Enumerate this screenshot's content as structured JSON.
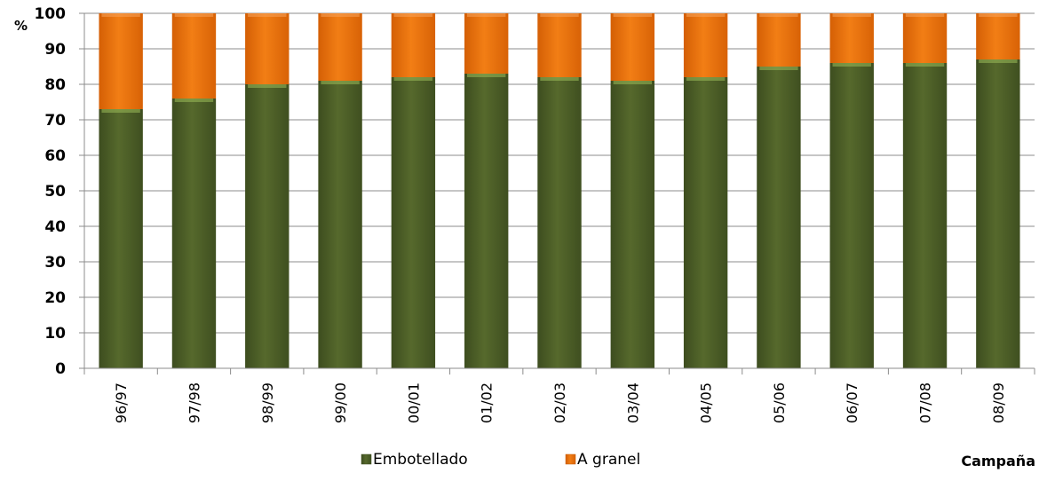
{
  "chart_data": {
    "type": "bar",
    "stacked": true,
    "ylabel": "%",
    "xlabel": "Campaña",
    "ylim": [
      0,
      100
    ],
    "yticks": [
      0,
      10,
      20,
      30,
      40,
      50,
      60,
      70,
      80,
      90,
      100
    ],
    "categories": [
      "96/97",
      "97/98",
      "98/99",
      "99/00",
      "00/01",
      "01/02",
      "02/03",
      "03/04",
      "04/05",
      "05/06",
      "06/07",
      "07/08",
      "08/09"
    ],
    "series": [
      {
        "name": "Embotellado",
        "color": "#4f6228",
        "values": [
          73,
          76,
          80,
          81,
          82,
          83,
          82,
          81,
          82,
          85,
          86,
          86,
          87
        ]
      },
      {
        "name": "A granel",
        "color": "#e36c09",
        "values": [
          27,
          24,
          20,
          19,
          18,
          17,
          18,
          19,
          18,
          15,
          14,
          14,
          13
        ]
      }
    ],
    "grid": true,
    "legend_position": "bottom"
  }
}
